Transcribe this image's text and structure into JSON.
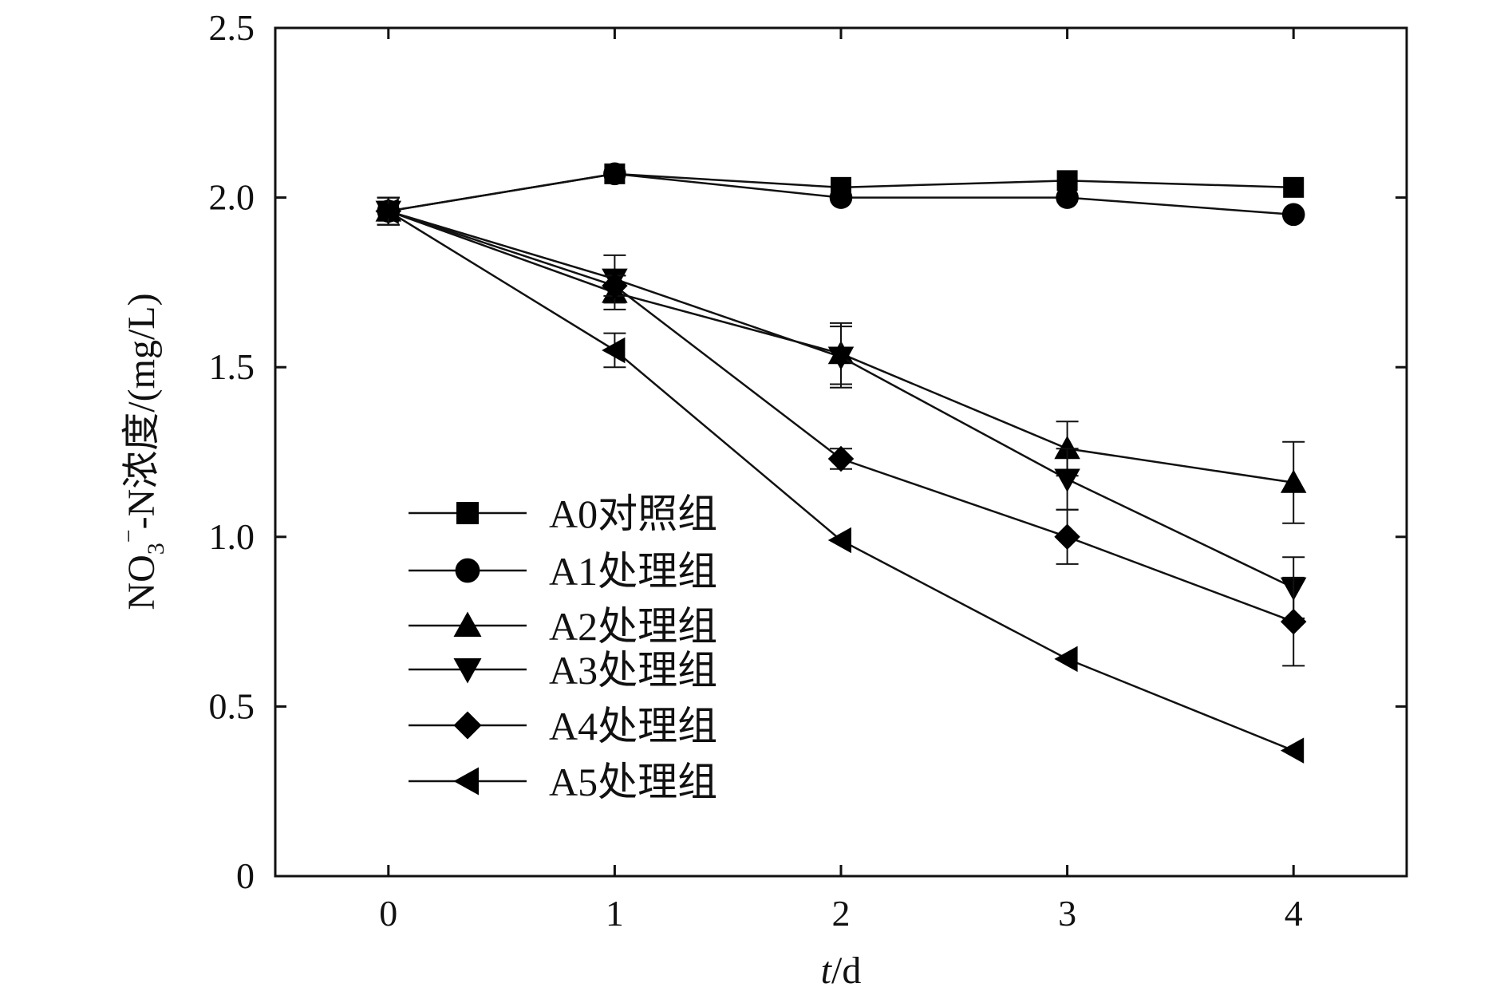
{
  "chart_data": {
    "type": "line",
    "xlabel": "t/d",
    "xlabel_parts": {
      "var": "t",
      "unit": "/d"
    },
    "ylabel": "NO3−-N浓度/(mg/L)",
    "ylabel_parts": {
      "base": "NO",
      "sub": "3",
      "sup": "−",
      "rest": "-N浓度/(mg/L)"
    },
    "x": [
      0,
      1,
      2,
      3,
      4
    ],
    "xlim": [
      -0.5,
      4.5
    ],
    "ylim": [
      0,
      2.5
    ],
    "xticks": [
      0,
      1,
      2,
      3,
      4
    ],
    "xtick_labels": [
      "0",
      "1",
      "2",
      "3",
      "4"
    ],
    "yticks": [
      0,
      0.5,
      1.0,
      1.5,
      2.0,
      2.5
    ],
    "ytick_labels": [
      "0",
      "0.5",
      "1.0",
      "1.5",
      "2.0",
      "2.5"
    ],
    "grid": false,
    "legend_position": "lower-left",
    "series": [
      {
        "name": "A0对照组",
        "marker": "square",
        "values": [
          1.96,
          2.07,
          2.03,
          2.05,
          2.03
        ],
        "errors": [
          0.04,
          0.01,
          0.01,
          0.01,
          0.01
        ]
      },
      {
        "name": "A1处理组",
        "marker": "circle",
        "values": [
          1.96,
          2.07,
          2.0,
          2.0,
          1.95
        ],
        "errors": [
          0.04,
          0.01,
          0.01,
          0.01,
          0.01
        ]
      },
      {
        "name": "A2处理组",
        "marker": "triangle-up",
        "values": [
          1.96,
          1.72,
          1.54,
          1.26,
          1.16
        ],
        "errors": [
          0.04,
          0.05,
          0.09,
          0.08,
          0.12
        ]
      },
      {
        "name": "A3处理组",
        "marker": "triangle-down",
        "values": [
          1.96,
          1.76,
          1.53,
          1.17,
          0.85
        ],
        "errors": [
          0.04,
          0.07,
          0.09,
          0.09,
          0.09
        ]
      },
      {
        "name": "A4处理组",
        "marker": "diamond",
        "values": [
          1.96,
          1.74,
          1.23,
          1.0,
          0.75
        ],
        "errors": [
          0.04,
          0.03,
          0.03,
          0.08,
          0.13
        ]
      },
      {
        "name": "A5处理组",
        "marker": "triangle-left",
        "values": [
          1.96,
          1.55,
          0.99,
          0.64,
          0.37
        ],
        "errors": [
          0.04,
          0.05,
          0.01,
          0.01,
          0.01
        ]
      }
    ]
  }
}
